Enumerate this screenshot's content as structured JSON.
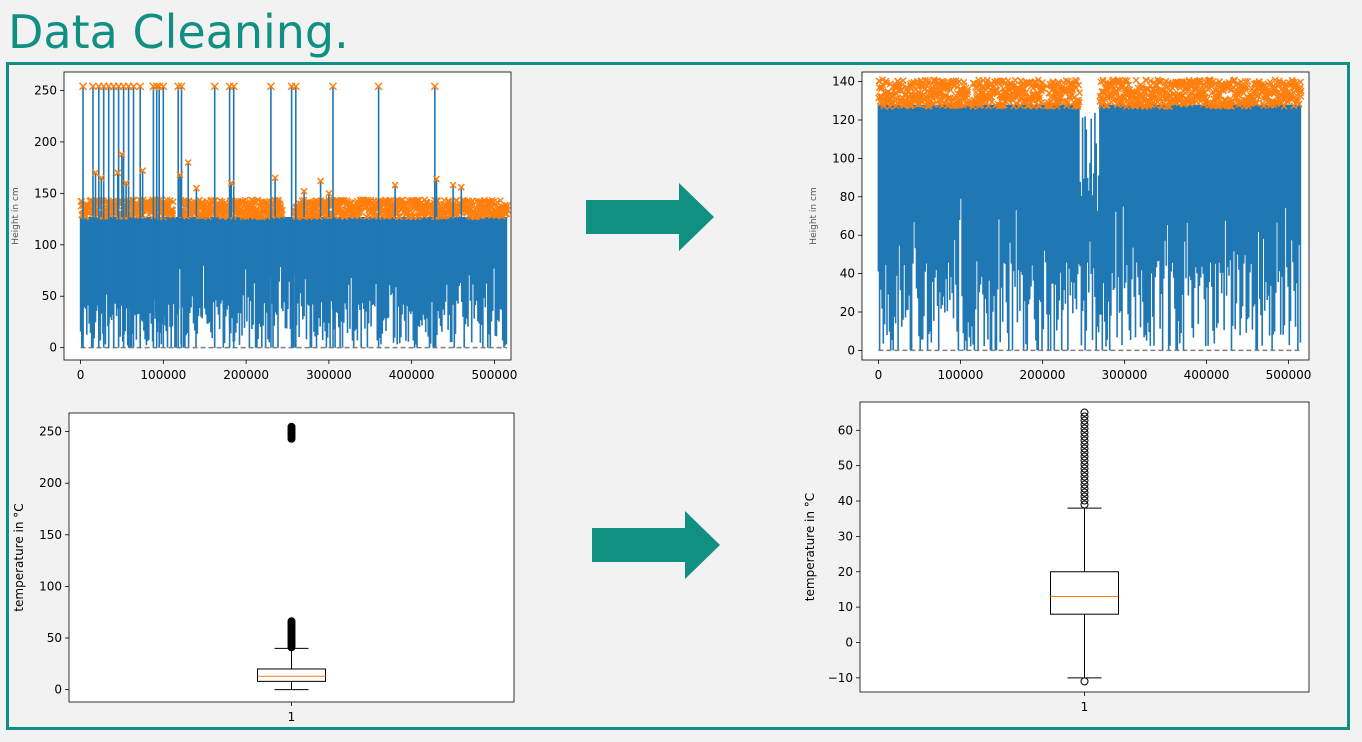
{
  "slide": {
    "title": "Data Cleaning."
  },
  "colors": {
    "accent": "#0f9080",
    "series_blue": "#1f77b4",
    "series_orange": "#ff7f0e",
    "median": "#ff7f0e"
  },
  "arrows": [
    {
      "icon": "right-arrow-icon",
      "color": "#0f9080"
    },
    {
      "icon": "right-arrow-icon",
      "color": "#0f9080"
    }
  ],
  "chart_data": [
    {
      "type": "line",
      "ylabel": "Height in cm",
      "xlim": [
        -20000,
        520000
      ],
      "ylim": [
        -12,
        268
      ],
      "xticks": [
        0,
        100000,
        200000,
        300000,
        400000,
        500000
      ],
      "yticks": [
        0,
        50,
        100,
        150,
        200,
        250
      ],
      "series": [
        {
          "style": "line",
          "color": "#1f77b4",
          "x_range": [
            0,
            515000
          ],
          "y_range": [
            0,
            255
          ]
        },
        {
          "style": "x-markers",
          "color": "#ff7f0e",
          "y_band": [
            127,
            148
          ],
          "outlier_value": 254
        },
        {
          "style": "dashed",
          "color": "#808080",
          "y": 0
        }
      ]
    },
    {
      "type": "line",
      "ylabel": "Height in cm",
      "xlim": [
        -20000,
        525000
      ],
      "ylim": [
        -5,
        145
      ],
      "xticks": [
        0,
        100000,
        200000,
        300000,
        400000,
        500000
      ],
      "yticks": [
        0,
        20,
        40,
        60,
        80,
        100,
        120,
        140
      ],
      "series": [
        {
          "style": "line",
          "color": "#1f77b4",
          "x_range": [
            0,
            515000
          ],
          "y_range": [
            0,
            128
          ]
        },
        {
          "style": "x-markers",
          "color": "#ff7f0e",
          "y_band": [
            127,
            141
          ]
        },
        {
          "style": "dashed",
          "color": "#808080",
          "y": 0
        }
      ]
    },
    {
      "type": "boxplot",
      "ylabel": "temperature in °C",
      "xticks": [
        "1"
      ],
      "ylim": [
        -12,
        268
      ],
      "yticks": [
        0,
        50,
        100,
        150,
        200,
        250
      ],
      "box": {
        "whisker_low": 0,
        "q1": 8,
        "median": 13,
        "q3": 20,
        "whisker_high": 40
      },
      "fliers_high": [
        [
          41,
          67
        ],
        [
          243,
          256
        ]
      ]
    },
    {
      "type": "boxplot",
      "ylabel": "temperature in °C",
      "xticks": [
        "1"
      ],
      "ylim": [
        -14,
        68
      ],
      "yticks": [
        -10,
        0,
        10,
        20,
        30,
        40,
        50,
        60
      ],
      "box": {
        "whisker_low": -10,
        "q1": 8,
        "median": 13,
        "q3": 20,
        "whisker_high": 38
      },
      "fliers_high": [
        [
          39,
          66
        ]
      ],
      "fliers_low": [
        [
          -10.5,
          -11
        ]
      ]
    }
  ]
}
